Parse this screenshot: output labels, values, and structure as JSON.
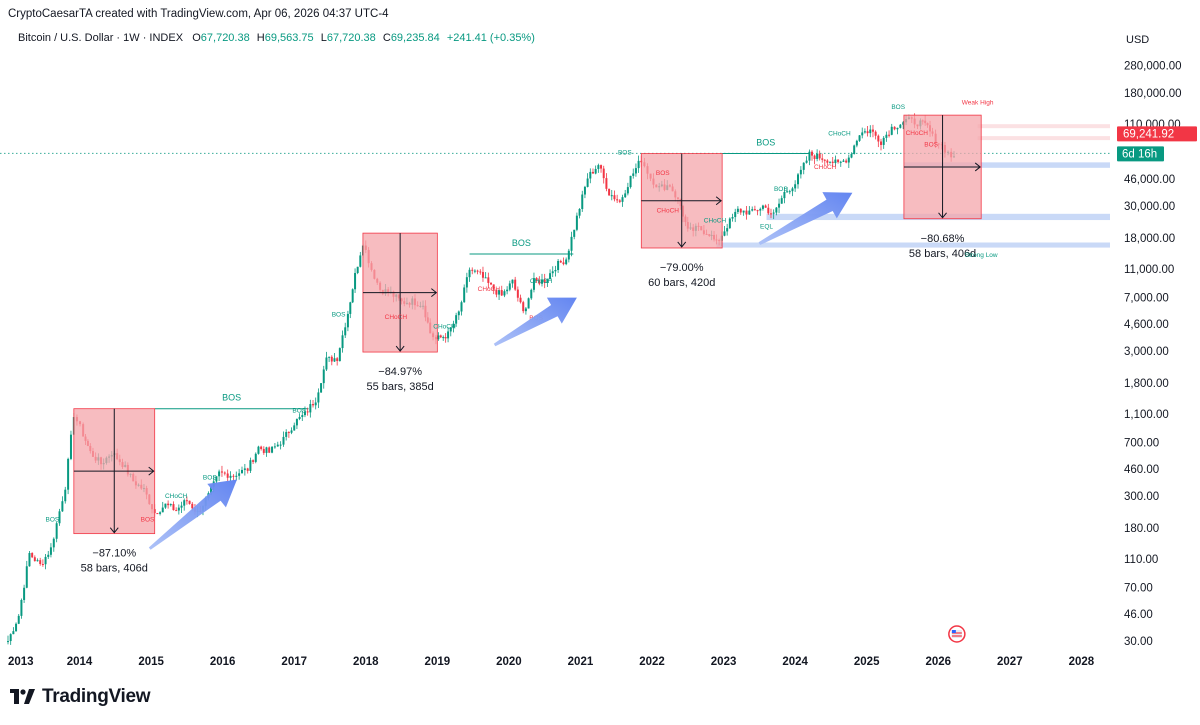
{
  "header": {
    "attribution": "CryptoCaesarTA created with TradingView.com, Apr 06, 2026 04:37 UTC-4",
    "symbol": "Bitcoin / U.S. Dollar · 1W · INDEX",
    "open_label": "O",
    "open": "67,720.38",
    "high_label": "H",
    "high": "69,563.75",
    "low_label": "L",
    "low": "67,720.38",
    "close_label": "C",
    "close": "69,235.84",
    "change": "+241.41 (+0.35%)"
  },
  "branding": {
    "logo_text": "TradingView"
  },
  "colors": {
    "up": "#089981",
    "down": "#f23645",
    "box_fill": "#f4a6ab",
    "arrow": "#6f8ff0",
    "zone": "#bcd0f5",
    "pricebox": "#f23645",
    "timerbox": "#089981"
  },
  "chart_data": {
    "type": "candlestick",
    "title": "Bitcoin / U.S. Dollar · 1W · INDEX",
    "currency_label": "USD",
    "y_scale": "log",
    "ylim": [
      26,
      330000
    ],
    "xlim": [
      2013.0,
      2028.4
    ],
    "y_ticks": [
      "280,000.00",
      "180,000.00",
      "110,000.00",
      "46,000.00",
      "30,000.00",
      "18,000.00",
      "11,000.00",
      "7,000.00",
      "4,600.00",
      "3,000.00",
      "1,800.00",
      "1,100.00",
      "700.00",
      "460.00",
      "300.00",
      "180.00",
      "110.00",
      "70.00",
      "46.00",
      "30.00"
    ],
    "y_tick_values": [
      280000,
      180000,
      110000,
      46000,
      30000,
      18000,
      11000,
      7000,
      4600,
      3000,
      1800,
      1100,
      700,
      460,
      300,
      180,
      110,
      70,
      46,
      30
    ],
    "x_ticks": [
      "2013",
      "2014",
      "2015",
      "2016",
      "2017",
      "2018",
      "2019",
      "2020",
      "2021",
      "2022",
      "2023",
      "2024",
      "2025",
      "2026",
      "2027",
      "2028"
    ],
    "x_tick_values": [
      2013,
      2014,
      2015,
      2016,
      2017,
      2018,
      2019,
      2020,
      2021,
      2022,
      2023,
      2024,
      2025,
      2026,
      2027,
      2028
    ],
    "current_price": "69,241.92",
    "current_price_value": 69241.92,
    "countdown": "6d 16h",
    "price_path": [
      [
        2013.0,
        30
      ],
      [
        2013.15,
        45
      ],
      [
        2013.3,
        120
      ],
      [
        2013.45,
        100
      ],
      [
        2013.6,
        130
      ],
      [
        2013.8,
        350
      ],
      [
        2013.92,
        1100
      ],
      [
        2014.05,
        800
      ],
      [
        2014.15,
        600
      ],
      [
        2014.3,
        500
      ],
      [
        2014.45,
        600
      ],
      [
        2014.6,
        500
      ],
      [
        2014.75,
        380
      ],
      [
        2014.9,
        330
      ],
      [
        2015.05,
        230
      ],
      [
        2015.2,
        260
      ],
      [
        2015.35,
        240
      ],
      [
        2015.5,
        280
      ],
      [
        2015.65,
        230
      ],
      [
        2015.8,
        300
      ],
      [
        2015.95,
        430
      ],
      [
        2016.15,
        420
      ],
      [
        2016.35,
        460
      ],
      [
        2016.5,
        650
      ],
      [
        2016.65,
        600
      ],
      [
        2016.85,
        740
      ],
      [
        2017.0,
        960
      ],
      [
        2017.15,
        1100
      ],
      [
        2017.3,
        1400
      ],
      [
        2017.45,
        2600
      ],
      [
        2017.6,
        2700
      ],
      [
        2017.75,
        5500
      ],
      [
        2017.85,
        10000
      ],
      [
        2017.96,
        17000
      ],
      [
        2018.08,
        11000
      ],
      [
        2018.2,
        8000
      ],
      [
        2018.35,
        7500
      ],
      [
        2018.5,
        6500
      ],
      [
        2018.65,
        6600
      ],
      [
        2018.8,
        6300
      ],
      [
        2018.9,
        4000
      ],
      [
        2018.98,
        3600
      ],
      [
        2019.15,
        3900
      ],
      [
        2019.3,
        5500
      ],
      [
        2019.45,
        11000
      ],
      [
        2019.6,
        10000
      ],
      [
        2019.75,
        8300
      ],
      [
        2019.9,
        7200
      ],
      [
        2020.05,
        9000
      ],
      [
        2020.2,
        5500
      ],
      [
        2020.35,
        9000
      ],
      [
        2020.5,
        9200
      ],
      [
        2020.65,
        11500
      ],
      [
        2020.8,
        13000
      ],
      [
        2020.95,
        25000
      ],
      [
        2021.1,
        47000
      ],
      [
        2021.25,
        58000
      ],
      [
        2021.4,
        37000
      ],
      [
        2021.55,
        32000
      ],
      [
        2021.7,
        47000
      ],
      [
        2021.85,
        63000
      ],
      [
        2021.98,
        47000
      ],
      [
        2022.1,
        40000
      ],
      [
        2022.25,
        42000
      ],
      [
        2022.4,
        30000
      ],
      [
        2022.5,
        20000
      ],
      [
        2022.65,
        21000
      ],
      [
        2022.8,
        19500
      ],
      [
        2022.9,
        16500
      ],
      [
        2023.05,
        22000
      ],
      [
        2023.2,
        28000
      ],
      [
        2023.4,
        27000
      ],
      [
        2023.55,
        30000
      ],
      [
        2023.7,
        26000
      ],
      [
        2023.85,
        37000
      ],
      [
        2024.0,
        43000
      ],
      [
        2024.2,
        68000
      ],
      [
        2024.45,
        63000
      ],
      [
        2024.6,
        58000
      ],
      [
        2024.75,
        65000
      ],
      [
        2024.9,
        95000
      ],
      [
        2025.05,
        100000
      ],
      [
        2025.2,
        84000
      ],
      [
        2025.35,
        104000
      ],
      [
        2025.55,
        117000
      ],
      [
        2025.75,
        112000
      ],
      [
        2025.85,
        105000
      ],
      [
        2025.92,
        90000
      ],
      [
        2026.05,
        78000
      ],
      [
        2026.18,
        66000
      ],
      [
        2026.26,
        69235
      ]
    ],
    "drawdown_boxes": [
      {
        "x0": 2013.92,
        "x1": 2015.05,
        "top": 1200,
        "bottom": 165,
        "percent": "−87.10%",
        "duration": "58 bars, 406d"
      },
      {
        "x0": 2017.96,
        "x1": 2019.0,
        "top": 19500,
        "bottom": 2950,
        "percent": "−84.97%",
        "duration": "55 bars, 385d"
      },
      {
        "x0": 2021.85,
        "x1": 2022.98,
        "top": 69000,
        "bottom": 15400,
        "percent": "−79.00%",
        "duration": "60 bars, 420d"
      },
      {
        "x0": 2025.52,
        "x1": 2026.6,
        "top": 127000,
        "bottom": 24500,
        "percent": "−80.68%",
        "duration": "58 bars, 406d"
      }
    ],
    "bos_lines": [
      {
        "x0": 2015.05,
        "x1": 2017.2,
        "y": 1200,
        "label": "BOS"
      },
      {
        "x0": 2019.45,
        "x1": 2020.9,
        "y": 14000,
        "label": "BOS"
      },
      {
        "x0": 2022.98,
        "x1": 2024.2,
        "y": 69000,
        "label": "BOS"
      }
    ],
    "small_labels": [
      {
        "x": 2013.62,
        "y": 200,
        "text": "BOS",
        "kind": "up"
      },
      {
        "x": 2015.35,
        "y": 290,
        "text": "CHoCH",
        "kind": "up"
      },
      {
        "x": 2015.82,
        "y": 390,
        "text": "BOS",
        "kind": "up"
      },
      {
        "x": 2014.95,
        "y": 200,
        "text": "BOS",
        "kind": "down"
      },
      {
        "x": 2017.07,
        "y": 1130,
        "text": "BOS",
        "kind": "up"
      },
      {
        "x": 2017.62,
        "y": 5200,
        "text": "BOS",
        "kind": "up"
      },
      {
        "x": 2018.42,
        "y": 5000,
        "text": "CHoCH",
        "kind": "down"
      },
      {
        "x": 2019.1,
        "y": 4300,
        "text": "CHoCH",
        "kind": "up"
      },
      {
        "x": 2019.72,
        "y": 7800,
        "text": "CHoCH",
        "kind": "down"
      },
      {
        "x": 2020.38,
        "y": 4900,
        "text": "BOS",
        "kind": "down"
      },
      {
        "x": 2020.45,
        "y": 8800,
        "text": "CHoCH",
        "kind": "up"
      },
      {
        "x": 2021.62,
        "y": 68000,
        "text": "BOS",
        "kind": "up"
      },
      {
        "x": 2022.15,
        "y": 49000,
        "text": "BOS",
        "kind": "down"
      },
      {
        "x": 2022.22,
        "y": 27000,
        "text": "CHoCH",
        "kind": "down"
      },
      {
        "x": 2022.88,
        "y": 23000,
        "text": "CHoCH",
        "kind": "up"
      },
      {
        "x": 2023.8,
        "y": 38000,
        "text": "BOS",
        "kind": "up"
      },
      {
        "x": 2023.6,
        "y": 21000,
        "text": "EQL",
        "kind": "up"
      },
      {
        "x": 2024.62,
        "y": 92000,
        "text": "CHoCH",
        "kind": "up"
      },
      {
        "x": 2024.42,
        "y": 54000,
        "text": "CHoCH",
        "kind": "down"
      },
      {
        "x": 2025.44,
        "y": 140000,
        "text": "BOS",
        "kind": "up"
      },
      {
        "x": 2025.7,
        "y": 93000,
        "text": "CHoCH",
        "kind": "down"
      },
      {
        "x": 2025.9,
        "y": 77000,
        "text": "BOS",
        "kind": "down"
      },
      {
        "x": 2026.55,
        "y": 150000,
        "text": "Weak High",
        "kind": "down"
      },
      {
        "x": 2026.6,
        "y": 13300,
        "text": "Strong Low",
        "kind": "up"
      }
    ],
    "zones": [
      {
        "x0": 2025.52,
        "x1": 2028.4,
        "y0": 55000,
        "y1": 60000
      },
      {
        "x0": 2023.6,
        "x1": 2028.4,
        "y0": 24000,
        "y1": 26500
      },
      {
        "x0": 2022.9,
        "x1": 2028.4,
        "y0": 15500,
        "y1": 16800
      }
    ],
    "top_bands": [
      {
        "x0": 2026.55,
        "x1": 2028.4,
        "y0": 105000,
        "y1": 110000
      },
      {
        "x0": 2026.55,
        "x1": 2028.4,
        "y0": 86000,
        "y1": 91000
      }
    ],
    "arrows": [
      {
        "x0": 2014.98,
        "y0": 130,
        "x1": 2016.2,
        "y1": 390
      },
      {
        "x0": 2019.8,
        "y0": 3300,
        "x1": 2020.95,
        "y1": 7000
      },
      {
        "x0": 2023.5,
        "y0": 16500,
        "x1": 2024.8,
        "y1": 37000
      }
    ]
  }
}
